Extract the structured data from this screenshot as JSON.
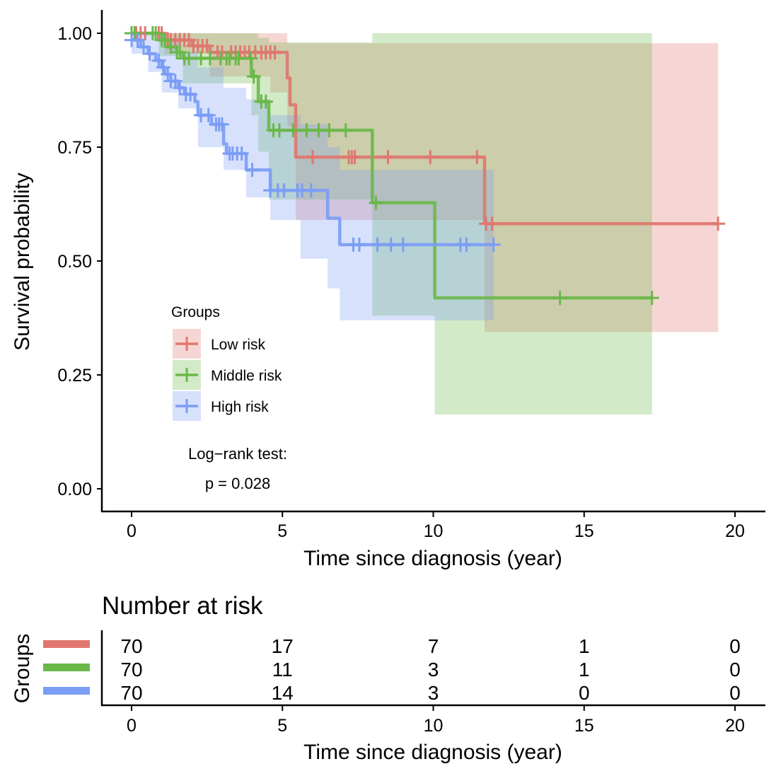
{
  "chart_data": {
    "type": "line",
    "subtype": "kaplan-meier",
    "title": "",
    "xlabel": "Time since diagnosis (year)",
    "ylabel": "Survival probability",
    "xlim": [
      -1,
      21
    ],
    "ylim": [
      -0.05,
      1.05
    ],
    "xticks": [
      0,
      5,
      10,
      15,
      20
    ],
    "xtick_labels": [
      "0",
      "5",
      "10",
      "15",
      "20"
    ],
    "yticks": [
      0,
      0.25,
      0.5,
      0.75,
      1.0
    ],
    "ytick_labels": [
      "0.00",
      "0.25",
      "0.50",
      "0.75",
      "1.00"
    ],
    "grid": false,
    "legend": {
      "title": "Groups",
      "position": "bottom-left-inside",
      "entries": [
        "Low risk",
        "Middle risk",
        "High risk"
      ]
    },
    "annotation": {
      "line1": "Log−rank test:",
      "line2": "p = 0.028"
    },
    "series": [
      {
        "name": "Low risk",
        "color": "#E0776F",
        "steps": [
          [
            0,
            1.0
          ],
          [
            1.1,
            0.985
          ],
          [
            2.0,
            0.972
          ],
          [
            2.6,
            0.958
          ],
          [
            5.16,
            0.902
          ],
          [
            5.25,
            0.843
          ],
          [
            5.44,
            0.728
          ],
          [
            11.7,
            0.582
          ],
          [
            19.44,
            0.582
          ]
        ],
        "censor_times": [
          0.15,
          0.3,
          0.45,
          0.9,
          1.0,
          1.1,
          1.2,
          1.3,
          1.45,
          1.6,
          1.75,
          1.9,
          2.05,
          2.2,
          2.35,
          2.5,
          2.85,
          3.0,
          3.3,
          3.45,
          3.6,
          3.75,
          3.9,
          4.1,
          4.3,
          4.45,
          4.6,
          4.75,
          6.0,
          7.2,
          7.3,
          7.4,
          8.5,
          9.9,
          11.45,
          11.75,
          11.95,
          19.44
        ],
        "ci": [
          [
            0,
            1.0,
            1.0
          ],
          [
            1.1,
            1.0,
            0.955
          ],
          [
            2.6,
            1.0,
            0.905
          ],
          [
            4.6,
            1.0,
            0.87
          ],
          [
            5.16,
            0.978,
            0.795
          ],
          [
            5.44,
            0.978,
            0.59
          ],
          [
            11.7,
            0.978,
            0.344
          ],
          [
            19.44,
            0.978,
            0.344
          ]
        ]
      },
      {
        "name": "Middle risk",
        "color": "#6AB84A",
        "steps": [
          [
            0,
            1.0
          ],
          [
            0.9,
            0.985
          ],
          [
            1.2,
            0.97
          ],
          [
            1.5,
            0.958
          ],
          [
            1.7,
            0.945
          ],
          [
            3.97,
            0.905
          ],
          [
            4.2,
            0.85
          ],
          [
            4.55,
            0.787
          ],
          [
            7.98,
            0.628
          ],
          [
            10.05,
            0.419
          ],
          [
            17.25,
            0.419
          ]
        ],
        "censor_times": [
          0.0,
          0.1,
          0.7,
          0.8,
          1.0,
          1.1,
          1.3,
          1.5,
          1.6,
          1.75,
          1.9,
          2.3,
          2.6,
          2.95,
          3.15,
          3.25,
          3.45,
          3.55,
          3.95,
          4.05,
          4.3,
          4.45,
          4.7,
          4.9,
          5.35,
          5.8,
          6.2,
          6.55,
          7.1,
          8.1,
          14.2,
          17.25
        ],
        "ci": [
          [
            0,
            1.0,
            1.0
          ],
          [
            0.9,
            1.0,
            0.95
          ],
          [
            1.7,
            1.0,
            0.89
          ],
          [
            3.97,
            1.0,
            0.82
          ],
          [
            4.2,
            0.99,
            0.74
          ],
          [
            4.55,
            0.98,
            0.635
          ],
          [
            5.15,
            0.98,
            0.635
          ],
          [
            7.98,
            1.0,
            0.38
          ],
          [
            10.05,
            1.0,
            0.163
          ],
          [
            17.25,
            1.0,
            0.163
          ]
        ]
      },
      {
        "name": "High risk",
        "color": "#7B9DF5",
        "steps": [
          [
            0,
            0.985
          ],
          [
            0.3,
            0.97
          ],
          [
            0.55,
            0.955
          ],
          [
            0.8,
            0.94
          ],
          [
            1.0,
            0.925
          ],
          [
            1.1,
            0.91
          ],
          [
            1.3,
            0.895
          ],
          [
            1.55,
            0.88
          ],
          [
            1.75,
            0.866
          ],
          [
            2.1,
            0.85
          ],
          [
            2.2,
            0.82
          ],
          [
            2.65,
            0.8
          ],
          [
            3.05,
            0.757
          ],
          [
            3.15,
            0.736
          ],
          [
            3.8,
            0.7
          ],
          [
            4.6,
            0.655
          ],
          [
            6.5,
            0.594
          ],
          [
            6.9,
            0.536
          ],
          [
            12.0,
            0.536
          ]
        ],
        "censor_times": [
          0.0,
          0.2,
          0.4,
          0.6,
          0.9,
          1.05,
          1.2,
          1.3,
          1.45,
          1.6,
          1.8,
          1.95,
          2.3,
          2.55,
          2.8,
          2.9,
          3.0,
          3.25,
          3.35,
          3.5,
          3.65,
          4.0,
          4.6,
          4.85,
          5.05,
          5.5,
          5.65,
          5.95,
          7.35,
          7.55,
          8.15,
          8.6,
          9.0,
          10.9,
          11.1,
          12.0
        ],
        "ci": [
          [
            0,
            1.0,
            0.955
          ],
          [
            0.55,
            1.0,
            0.915
          ],
          [
            1.0,
            0.99,
            0.87
          ],
          [
            1.55,
            0.96,
            0.835
          ],
          [
            2.2,
            0.925,
            0.75
          ],
          [
            3.05,
            0.88,
            0.7
          ],
          [
            3.8,
            0.855,
            0.64
          ],
          [
            4.6,
            0.82,
            0.59
          ],
          [
            5.6,
            0.8,
            0.505
          ],
          [
            6.5,
            0.75,
            0.44
          ],
          [
            6.9,
            0.7,
            0.37
          ],
          [
            8.0,
            0.7,
            0.37
          ],
          [
            12.0,
            0.7,
            0.37
          ]
        ]
      }
    ]
  },
  "risk_table": {
    "title": "Number at risk",
    "ylabel": "Groups",
    "xlabel": "Time since diagnosis (year)",
    "times": [
      0,
      5,
      10,
      15,
      20
    ],
    "time_labels": [
      "0",
      "5",
      "10",
      "15",
      "20"
    ],
    "rows": [
      {
        "group": "Low risk",
        "color": "#E0776F",
        "values": [
          "70",
          "17",
          "7",
          "1",
          "0"
        ]
      },
      {
        "group": "Middle risk",
        "color": "#6AB84A",
        "values": [
          "70",
          "11",
          "3",
          "1",
          "0"
        ]
      },
      {
        "group": "High risk",
        "color": "#7B9DF5",
        "values": [
          "70",
          "14",
          "3",
          "0",
          "0"
        ]
      }
    ]
  }
}
